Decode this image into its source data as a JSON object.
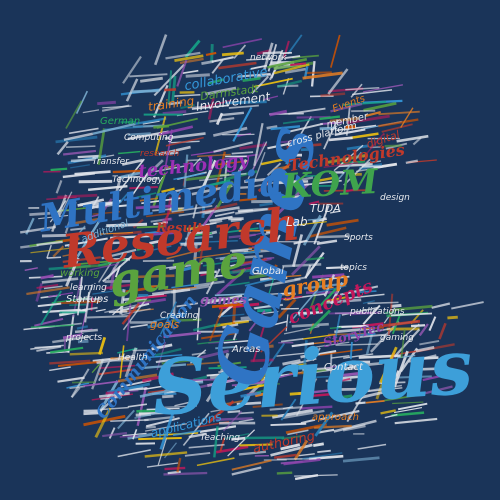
{
  "colors": {
    "background": "#1a3459",
    "palette": [
      "#e8eaee",
      "#c0392b",
      "#5aa33e",
      "#2980b9",
      "#8e44ad",
      "#27ae60",
      "#e67e22",
      "#3498db",
      "#7fb3d5",
      "#d35400",
      "#16a085",
      "#c2185b",
      "#9b59b6",
      "#f1c40f"
    ]
  },
  "words": [
    {
      "text": "Serious",
      "color": "#3d9fd9"
    },
    {
      "text": "Games",
      "color": "#2f74c4"
    },
    {
      "text": "Research",
      "color": "#c0392b"
    },
    {
      "text": "Multimedia",
      "color": "#2f74c4"
    },
    {
      "text": "game",
      "color": "#5aa33e"
    },
    {
      "text": "KOM",
      "color": "#3fa34d"
    },
    {
      "text": "Technologies",
      "color": "#c0392b"
    },
    {
      "text": "technology",
      "color": "#9b30b5"
    },
    {
      "text": "Communication",
      "color": "#2f74c4"
    },
    {
      "text": "group",
      "color": "#e67e22"
    },
    {
      "text": "concepts",
      "color": "#c2185b"
    },
    {
      "text": "games",
      "color": "#9b59b6"
    },
    {
      "text": "StoryTec",
      "color": "#8e44ad"
    },
    {
      "text": "Results",
      "color": "#c0392b"
    },
    {
      "text": "Lab",
      "color": "#e8eaee"
    },
    {
      "text": "TUDA",
      "color": "#e8eaee"
    },
    {
      "text": "applications",
      "color": "#3498db"
    },
    {
      "text": "authoring",
      "color": "#c0392b"
    },
    {
      "text": "training",
      "color": "#e67e22"
    },
    {
      "text": "Involvement",
      "color": "#e8eaee"
    },
    {
      "text": "collaborative",
      "color": "#3498db"
    },
    {
      "text": "Darmstadt",
      "color": "#5aa33e"
    },
    {
      "text": "digital",
      "color": "#c0392b"
    },
    {
      "text": "Events",
      "color": "#e67e22"
    },
    {
      "text": "member",
      "color": "#e8eaee"
    },
    {
      "text": "cross platform",
      "color": "#e8eaee"
    },
    {
      "text": "additional",
      "color": "#7fb3d5"
    },
    {
      "text": "working",
      "color": "#5aa33e"
    },
    {
      "text": "goals",
      "color": "#e67e22"
    },
    {
      "text": "Areas",
      "color": "#e8eaee"
    },
    {
      "text": "Contact",
      "color": "#e8eaee"
    },
    {
      "text": "Global",
      "color": "#e8eaee"
    },
    {
      "text": "approach",
      "color": "#e67e22"
    },
    {
      "text": "German",
      "color": "#27ae60"
    },
    {
      "text": "Startups",
      "color": "#e8eaee"
    },
    {
      "text": "Transfer",
      "color": "#e8eaee"
    },
    {
      "text": "learning",
      "color": "#e8eaee"
    },
    {
      "text": "Technology",
      "color": "#e8eaee"
    },
    {
      "text": "Computing",
      "color": "#e8eaee"
    },
    {
      "text": "research",
      "color": "#c0392b"
    },
    {
      "text": "topics",
      "color": "#e8eaee"
    },
    {
      "text": "Creating",
      "color": "#e8eaee"
    },
    {
      "text": "Sports",
      "color": "#e8eaee"
    },
    {
      "text": "publications",
      "color": "#e8eaee"
    },
    {
      "text": "Teaching",
      "color": "#e8eaee"
    },
    {
      "text": "Health",
      "color": "#e8eaee"
    },
    {
      "text": "gaming",
      "color": "#e8eaee"
    },
    {
      "text": "projects",
      "color": "#e8eaee"
    },
    {
      "text": "network",
      "color": "#e8eaee"
    },
    {
      "text": "design",
      "color": "#e8eaee"
    }
  ]
}
